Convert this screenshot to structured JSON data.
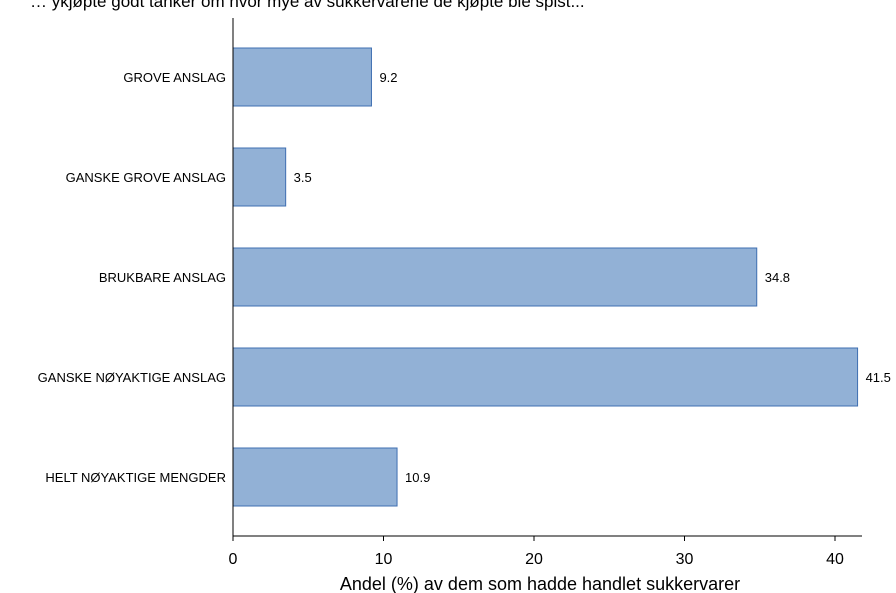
{
  "header_text": "… ykjøpte godt tanker om hvor mye av sukkervarene de kjøpte ble spist...",
  "chart_data": {
    "type": "bar",
    "orientation": "horizontal",
    "categories": [
      "GROVE ANSLAG",
      "GANSKE GROVE ANSLAG",
      "BRUKBARE ANSLAG",
      "GANSKE NØYAKTIGE ANSLAG",
      "HELT NØYAKTIGE MENGDER"
    ],
    "values": [
      9.2,
      3.5,
      34.8,
      41.5,
      10.9
    ],
    "value_labels": [
      "9.2",
      "3.5",
      "34.8",
      "41.5",
      "10.9"
    ],
    "xlabel": "Andel (%) av dem som hadde handlet sukkervarer",
    "xlim": [
      0,
      43
    ],
    "xticks": [
      0,
      10,
      20,
      30,
      40
    ],
    "grid": false,
    "bar_color": "#92b1d6",
    "bar_edge_color": "#3f6fb1"
  }
}
